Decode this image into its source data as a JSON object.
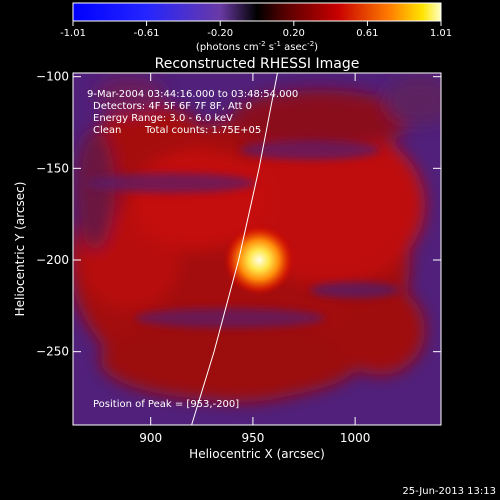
{
  "chart_data": {
    "type": "heatmap",
    "title": "Reconstructed RHESSI Image",
    "xlabel": "Heliocentric X (arcsec)",
    "ylabel": "Heliocentric Y (arcsec)",
    "xlim": [
      862,
      1042
    ],
    "ylim": [
      -290,
      -98
    ],
    "x_ticks": [
      900,
      950,
      1000
    ],
    "y_ticks": [
      -100,
      -150,
      -200,
      -250
    ],
    "colorbar": {
      "ticks": [
        "-1.01",
        "-0.61",
        "-0.20",
        "0.20",
        "0.61",
        "1.01"
      ],
      "range": [
        -1.01,
        1.01
      ],
      "unit_base": "(photons cm",
      "unit_sup1": "-2",
      "unit_mid": " s",
      "unit_sup2": "-1",
      "unit_mid2": " asec",
      "unit_sup3": "-2",
      "unit_end": ")"
    },
    "annotations": {
      "time_range": "9-Mar-2004 03:44:16.000 to 03:48:54.000",
      "detectors": "Detectors: 4F 5F 6F 7F 8F, Att 0",
      "energy_range": "Energy Range: 3.0 - 6.0 keV",
      "clean": "Clean",
      "total_counts": "Total counts: 1.75E+05",
      "peak_position": "Position of Peak = [953,-200]"
    },
    "peak": {
      "x": 953,
      "y": -200
    },
    "limb": [
      [
        920,
        -290
      ],
      [
        931,
        -250
      ],
      [
        943,
        -200
      ],
      [
        953,
        -150
      ],
      [
        962,
        -98
      ]
    ],
    "colormap": "hot-with-blue-negatives",
    "grid": false,
    "legend": "none"
  },
  "footer": {
    "timestamp": "25-Jun-2013 13:13"
  }
}
